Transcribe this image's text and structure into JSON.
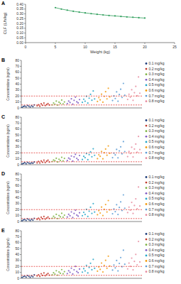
{
  "chart_data": [
    {
      "type": "line",
      "title": "A",
      "x_label": "Weight (kg)",
      "y_label": "CLF (L/h/kg)",
      "color": "#2e9e5b",
      "marker": "circle",
      "x": [
        5,
        6,
        7,
        8,
        9,
        10,
        11,
        12,
        13,
        14,
        15,
        16,
        17,
        18,
        19,
        20
      ],
      "values": [
        0.365,
        0.35,
        0.338,
        0.327,
        0.318,
        0.31,
        0.302,
        0.295,
        0.289,
        0.283,
        0.278,
        0.273,
        0.268,
        0.264,
        0.26,
        0.256
      ],
      "xlim": [
        0,
        25
      ],
      "xticks": [
        0,
        5,
        10,
        15,
        20,
        25
      ],
      "ylim": [
        0,
        0.4
      ],
      "yticks": [
        {
          "value": 0,
          "label": "0.00"
        },
        {
          "value": 0.05,
          "label": "0.05"
        },
        {
          "value": 0.1,
          "label": "0.10"
        },
        {
          "value": 0.15,
          "label": "0.15"
        },
        {
          "value": 0.2,
          "label": "0.20"
        },
        {
          "value": 0.25,
          "label": "0.25"
        },
        {
          "value": 0.3,
          "label": "0.30"
        },
        {
          "value": 0.35,
          "label": "0.35"
        },
        {
          "value": 0.4,
          "label": "0.40"
        }
      ]
    },
    {
      "type": "scatter",
      "title": "B",
      "y_label": "Concentrations (ng/ml)",
      "xlim": [
        0,
        800
      ],
      "ylim": [
        0,
        80
      ],
      "yticks": [
        0,
        10,
        20,
        30,
        40,
        50,
        60,
        70,
        80
      ],
      "tick_labels": "y",
      "legend": "right",
      "thresholds": [
        5,
        20
      ],
      "series": [
        {
          "name": "0.1 mg/kg",
          "color": "#1f3d7a",
          "x": [
            5,
            14,
            23,
            32,
            41,
            50,
            59,
            68,
            77,
            86
          ],
          "values": [
            1.2,
            2.5,
            3.1,
            1.8,
            4.2,
            2.9,
            1.5,
            3.6,
            2.2,
            5.1
          ]
        },
        {
          "name": "0.2 mg/kg",
          "color": "#c0392b",
          "x": [
            105,
            114,
            123,
            132,
            141,
            150,
            159,
            168,
            177,
            186
          ],
          "values": [
            3.5,
            5.2,
            2.8,
            6.9,
            4.4,
            8.1,
            3.9,
            5.8,
            7.2,
            4.9
          ]
        },
        {
          "name": "0.3 mg/kg",
          "color": "#7cb342",
          "x": [
            205,
            214,
            223,
            232,
            241,
            250,
            259,
            268,
            277,
            286
          ],
          "values": [
            5.1,
            8.3,
            6.2,
            11.4,
            4.8,
            9.6,
            7.5,
            13.2,
            6.8,
            10.1
          ]
        },
        {
          "name": "0.4 mg/kg",
          "color": "#7e57c2",
          "x": [
            305,
            314,
            323,
            332,
            341,
            350,
            359,
            368,
            377,
            386
          ],
          "values": [
            7.2,
            11.5,
            9.1,
            15.3,
            6.4,
            12.8,
            18.1,
            10.2,
            8.5,
            14.0
          ]
        },
        {
          "name": "0.5 mg/kg",
          "color": "#26a6c8",
          "x": [
            405,
            414,
            423,
            432,
            441,
            450,
            459,
            468,
            477,
            486
          ],
          "values": [
            9.3,
            14.6,
            11.2,
            19.5,
            8.1,
            16.4,
            22.8,
            12.9,
            28.5,
            15.1
          ]
        },
        {
          "name": "0.6 mg/kg",
          "color": "#f39c12",
          "x": [
            505,
            514,
            523,
            532,
            541,
            550,
            559,
            568,
            577,
            586
          ],
          "values": [
            10.8,
            17.3,
            13.5,
            23.1,
            9.6,
            19.4,
            27.2,
            15.2,
            33.0,
            18.6
          ]
        },
        {
          "name": "0.7 mg/kg",
          "color": "#5b9bd5",
          "x": [
            605,
            614,
            623,
            632,
            641,
            650,
            659,
            668,
            677,
            686
          ],
          "values": [
            12.4,
            20.1,
            15.8,
            26.9,
            11.2,
            22.5,
            31.4,
            17.6,
            41.2,
            21.3
          ]
        },
        {
          "name": "0.8 mg/kg",
          "color": "#e88ca0",
          "x": [
            705,
            714,
            723,
            732,
            741,
            750,
            759,
            768,
            777,
            786
          ],
          "values": [
            14.2,
            23.0,
            18.1,
            30.5,
            12.8,
            25.6,
            36.2,
            20.4,
            52.0,
            24.8
          ]
        }
      ]
    },
    {
      "type": "scatter",
      "title": "C",
      "y_label": "Concentrations (ng/ml)",
      "xlim": [
        0,
        800
      ],
      "ylim": [
        0,
        80
      ],
      "yticks": [
        0,
        10,
        20,
        30,
        40,
        50,
        60,
        70,
        80
      ],
      "tick_labels": "y",
      "legend": "right",
      "thresholds": [
        5,
        20
      ],
      "series": [
        {
          "name": "0.1 mg/kg",
          "color": "#1f3d7a",
          "x": [
            5,
            14,
            23,
            32,
            41,
            50,
            59,
            68,
            77,
            86
          ],
          "values": [
            1.4,
            2.2,
            3.4,
            1.6,
            3.9,
            2.7,
            1.9,
            3.2,
            2.5,
            4.6
          ]
        },
        {
          "name": "0.2 mg/kg",
          "color": "#c0392b",
          "x": [
            105,
            114,
            123,
            132,
            141,
            150,
            159,
            168,
            177,
            186
          ],
          "values": [
            3.1,
            5.6,
            2.9,
            6.4,
            4.1,
            7.7,
            3.6,
            6.1,
            7.5,
            4.5
          ]
        },
        {
          "name": "0.3 mg/kg",
          "color": "#7cb342",
          "x": [
            205,
            214,
            223,
            232,
            241,
            250,
            259,
            268,
            277,
            286
          ],
          "values": [
            5.4,
            7.9,
            6.6,
            10.8,
            4.6,
            9.2,
            7.1,
            12.5,
            6.3,
            10.7
          ]
        },
        {
          "name": "0.4 mg/kg",
          "color": "#7e57c2",
          "x": [
            305,
            314,
            323,
            332,
            341,
            350,
            359,
            368,
            377,
            386
          ],
          "values": [
            6.9,
            11.1,
            9.5,
            14.6,
            6.1,
            13.2,
            17.4,
            10.6,
            8.2,
            15.5
          ]
        },
        {
          "name": "0.5 mg/kg",
          "color": "#26a6c8",
          "x": [
            405,
            414,
            423,
            432,
            441,
            450,
            459,
            468,
            477,
            486
          ],
          "values": [
            8.8,
            14.1,
            11.9,
            18.7,
            8.4,
            16.9,
            21.6,
            13.4,
            26.8,
            15.8
          ]
        },
        {
          "name": "0.6 mg/kg",
          "color": "#f39c12",
          "x": [
            505,
            514,
            523,
            532,
            541,
            550,
            559,
            568,
            577,
            586
          ],
          "values": [
            10.2,
            16.7,
            14.1,
            22.4,
            9.9,
            20.1,
            26.3,
            15.9,
            31.5,
            19.2
          ]
        },
        {
          "name": "0.7 mg/kg",
          "color": "#5b9bd5",
          "x": [
            605,
            614,
            623,
            632,
            641,
            650,
            659,
            668,
            677,
            686
          ],
          "values": [
            11.9,
            19.4,
            16.5,
            25.8,
            11.6,
            23.2,
            30.1,
            18.3,
            38.9,
            22.1
          ]
        },
        {
          "name": "0.8 mg/kg",
          "color": "#e88ca0",
          "x": [
            705,
            714,
            723,
            732,
            741,
            750,
            759,
            768,
            777,
            786
          ],
          "values": [
            13.6,
            22.2,
            18.8,
            29.4,
            13.1,
            26.4,
            34.7,
            21.2,
            47.5,
            25.6
          ]
        }
      ]
    },
    {
      "type": "scatter",
      "title": "D",
      "y_label": "Concentrations (ng/ml)",
      "xlim": [
        0,
        800
      ],
      "ylim": [
        0,
        80
      ],
      "yticks": [
        0,
        10,
        20,
        30,
        40,
        50,
        60,
        70,
        80
      ],
      "tick_labels": "y",
      "legend": "right",
      "thresholds": [
        5,
        20
      ],
      "series": [
        {
          "name": "0.1 mg/kg",
          "color": "#1f3d7a",
          "x": [
            5,
            14,
            23,
            32,
            41,
            50,
            59,
            68,
            77,
            86
          ],
          "values": [
            1.3,
            2.8,
            3.3,
            1.7,
            4.5,
            3.0,
            1.6,
            3.8,
            2.3,
            5.4
          ]
        },
        {
          "name": "0.2 mg/kg",
          "color": "#c0392b",
          "x": [
            105,
            114,
            123,
            132,
            141,
            150,
            159,
            168,
            177,
            186
          ],
          "values": [
            3.7,
            5.5,
            3.0,
            7.2,
            4.6,
            8.5,
            4.1,
            6.0,
            7.6,
            5.1
          ]
        },
        {
          "name": "0.3 mg/kg",
          "color": "#7cb342",
          "x": [
            205,
            214,
            223,
            232,
            241,
            250,
            259,
            268,
            277,
            286
          ],
          "values": [
            5.5,
            8.8,
            6.5,
            12.0,
            5.1,
            10.1,
            7.9,
            13.8,
            7.2,
            10.6
          ]
        },
        {
          "name": "0.4 mg/kg",
          "color": "#7e57c2",
          "x": [
            305,
            314,
            323,
            332,
            341,
            350,
            359,
            368,
            377,
            386
          ],
          "values": [
            7.6,
            12.1,
            9.6,
            16.1,
            6.8,
            13.5,
            19.0,
            10.8,
            9.0,
            14.7
          ]
        },
        {
          "name": "0.5 mg/kg",
          "color": "#26a6c8",
          "x": [
            405,
            414,
            423,
            432,
            441,
            450,
            459,
            468,
            477,
            486
          ],
          "values": [
            9.8,
            15.4,
            11.8,
            20.5,
            8.6,
            17.3,
            24.0,
            13.6,
            30.1,
            15.9
          ]
        },
        {
          "name": "0.6 mg/kg",
          "color": "#f39c12",
          "x": [
            505,
            514,
            523,
            532,
            541,
            550,
            559,
            568,
            577,
            586
          ],
          "values": [
            11.4,
            18.2,
            14.2,
            24.3,
            10.1,
            20.4,
            28.6,
            16.0,
            35.2,
            19.6
          ]
        },
        {
          "name": "0.7 mg/kg",
          "color": "#5b9bd5",
          "x": [
            605,
            614,
            623,
            632,
            641,
            650,
            659,
            668,
            677,
            686
          ],
          "values": [
            13.1,
            21.2,
            16.6,
            28.3,
            11.8,
            23.7,
            33.0,
            18.5,
            44.8,
            22.4
          ]
        },
        {
          "name": "0.8 mg/kg",
          "color": "#e88ca0",
          "x": [
            705,
            714,
            723,
            732,
            741,
            750,
            759,
            768,
            777,
            786
          ],
          "values": [
            15.0,
            24.2,
            19.1,
            32.1,
            13.5,
            27.0,
            38.1,
            21.5,
            58.0,
            26.1
          ]
        }
      ]
    },
    {
      "type": "scatter",
      "title": "E",
      "y_label": "Concentrations (ng/ml)",
      "xlim": [
        0,
        800
      ],
      "ylim": [
        0,
        80
      ],
      "yticks": [
        0,
        10,
        20,
        30,
        40,
        50,
        60,
        70,
        80
      ],
      "tick_labels": "y",
      "legend": "right",
      "thresholds": [
        5,
        20
      ],
      "series": [
        {
          "name": "0.1 mg/kg",
          "color": "#1f3d7a",
          "x": [
            5,
            14,
            23,
            32,
            41,
            50,
            59,
            68,
            77,
            86
          ],
          "values": [
            1.5,
            2.9,
            3.6,
            2.0,
            4.8,
            3.3,
            1.7,
            4.1,
            2.6,
            5.8
          ]
        },
        {
          "name": "0.2 mg/kg",
          "color": "#c0392b",
          "x": [
            105,
            114,
            123,
            132,
            141,
            150,
            159,
            168,
            177,
            186
          ],
          "values": [
            3.9,
            5.9,
            3.2,
            7.7,
            4.9,
            9.0,
            4.4,
            6.5,
            8.1,
            5.4
          ]
        },
        {
          "name": "0.3 mg/kg",
          "color": "#7cb342",
          "x": [
            205,
            214,
            223,
            232,
            241,
            250,
            259,
            268,
            277,
            286
          ],
          "values": [
            5.8,
            9.3,
            6.9,
            12.7,
            5.4,
            10.7,
            8.4,
            14.6,
            7.6,
            11.2
          ]
        },
        {
          "name": "0.4 mg/kg",
          "color": "#7e57c2",
          "x": [
            305,
            314,
            323,
            332,
            341,
            350,
            359,
            368,
            377,
            386
          ],
          "values": [
            8.0,
            12.8,
            10.1,
            17.0,
            7.2,
            14.3,
            20.1,
            11.4,
            9.5,
            15.6
          ]
        },
        {
          "name": "0.5 mg/kg",
          "color": "#26a6c8",
          "x": [
            405,
            414,
            423,
            432,
            441,
            450,
            459,
            468,
            477,
            486
          ],
          "values": [
            10.3,
            16.2,
            12.5,
            21.7,
            9.1,
            18.3,
            25.3,
            14.4,
            31.8,
            16.8
          ]
        },
        {
          "name": "0.6 mg/kg",
          "color": "#f39c12",
          "x": [
            505,
            514,
            523,
            532,
            541,
            550,
            559,
            568,
            577,
            586
          ],
          "values": [
            12.0,
            19.2,
            15.0,
            25.7,
            10.7,
            21.6,
            30.2,
            16.9,
            37.2,
            20.7
          ]
        },
        {
          "name": "0.7 mg/kg",
          "color": "#5b9bd5",
          "x": [
            605,
            614,
            623,
            632,
            641,
            650,
            659,
            668,
            677,
            686
          ],
          "values": [
            13.8,
            22.4,
            17.5,
            29.9,
            12.5,
            25.0,
            34.9,
            19.5,
            47.3,
            23.7
          ]
        },
        {
          "name": "0.8 mg/kg",
          "color": "#e88ca0",
          "x": [
            705,
            714,
            723,
            732,
            741,
            750,
            759,
            768,
            777,
            786
          ],
          "values": [
            15.8,
            25.6,
            20.2,
            33.9,
            14.2,
            28.5,
            40.2,
            22.7,
            62.0,
            27.6
          ]
        }
      ]
    }
  ]
}
